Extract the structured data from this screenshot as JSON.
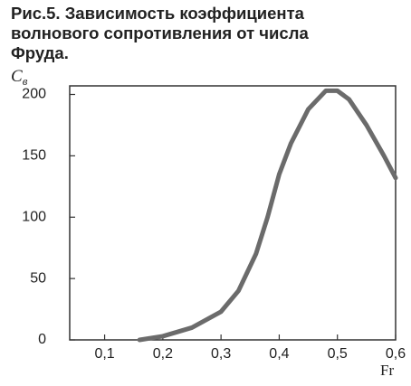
{
  "chart_data": {
    "type": "line",
    "title": "Рис.5. Зависимость коэффициента волнового сопротивления от числа Фруда.",
    "y_label": "C",
    "y_label_subscript": "в",
    "x_label": "Fr",
    "x": [
      0.16,
      0.2,
      0.25,
      0.3,
      0.33,
      0.36,
      0.38,
      0.4,
      0.42,
      0.45,
      0.48,
      0.5,
      0.52,
      0.55,
      0.58,
      0.6
    ],
    "series": [
      {
        "color": "#6b6b6b",
        "values": [
          0,
          3,
          10,
          23,
          40,
          70,
          100,
          135,
          160,
          188,
          203,
          203,
          196,
          175,
          150,
          132
        ]
      }
    ],
    "xlim": [
      0.04,
      0.6
    ],
    "xticks": [
      {
        "value": 0.1,
        "label": "0,1"
      },
      {
        "value": 0.2,
        "label": "0,2"
      },
      {
        "value": 0.3,
        "label": "0,3"
      },
      {
        "value": 0.4,
        "label": "0,4"
      },
      {
        "value": 0.5,
        "label": "0,5"
      },
      {
        "value": 0.6,
        "label": "0,6"
      }
    ],
    "ylim": [
      0,
      207
    ],
    "yticks": [
      0,
      50,
      100,
      150,
      200
    ],
    "grid": false
  }
}
